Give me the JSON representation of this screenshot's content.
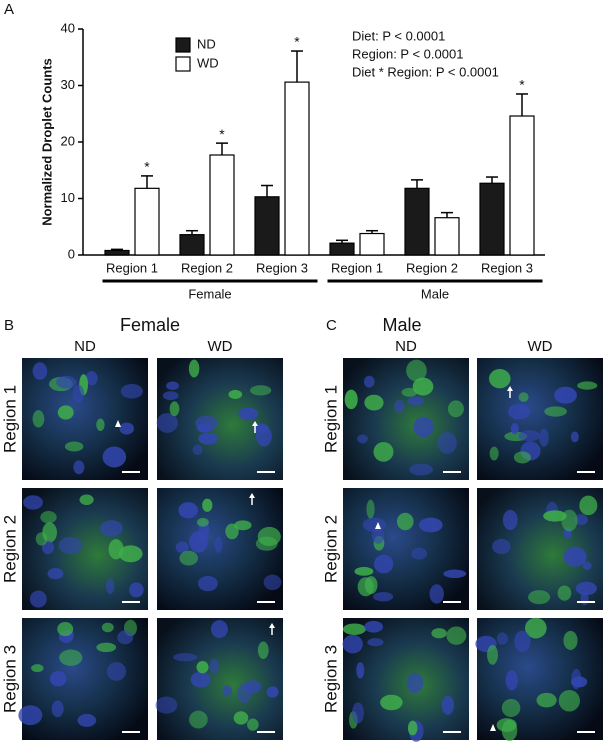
{
  "chart_data": {
    "type": "bar",
    "panel_label": "A",
    "ylabel": "Normalized Droplet Counts",
    "categories": [
      "Region 1",
      "Region 2",
      "Region 3",
      "Region 1",
      "Region 2",
      "Region 3"
    ],
    "groups": [
      "Female",
      "Male"
    ],
    "series": [
      {
        "name": "ND",
        "color": "#1a1a1a",
        "values": [
          0.8,
          3.6,
          10.3,
          2.1,
          11.8,
          12.7
        ],
        "errors": [
          0.2,
          0.7,
          2.0,
          0.5,
          1.5,
          1.1
        ]
      },
      {
        "name": "WD",
        "color": "#ffffff",
        "values": [
          11.8,
          17.7,
          30.6,
          3.8,
          6.6,
          24.6
        ],
        "errors": [
          2.2,
          2.1,
          5.5,
          0.5,
          0.9,
          3.9
        ],
        "markers": [
          "*",
          "*",
          "*",
          null,
          null,
          "*"
        ]
      }
    ],
    "annotations": [
      "Diet: P < 0.0001",
      "Region: P < 0.0001",
      "Diet * Region: P < 0.0001"
    ],
    "ylim": [
      0,
      40
    ],
    "yticks": [
      0,
      10,
      20,
      30,
      40
    ]
  },
  "panels": [
    {
      "letter": "B",
      "title": "Female",
      "columns": [
        "ND",
        "WD"
      ],
      "rows": [
        "Region 1",
        "Region 2",
        "Region 3"
      ]
    },
    {
      "letter": "C",
      "title": "Male",
      "columns": [
        "ND",
        "WD"
      ],
      "rows": [
        "Region 1",
        "Region 2",
        "Region 3"
      ]
    }
  ]
}
